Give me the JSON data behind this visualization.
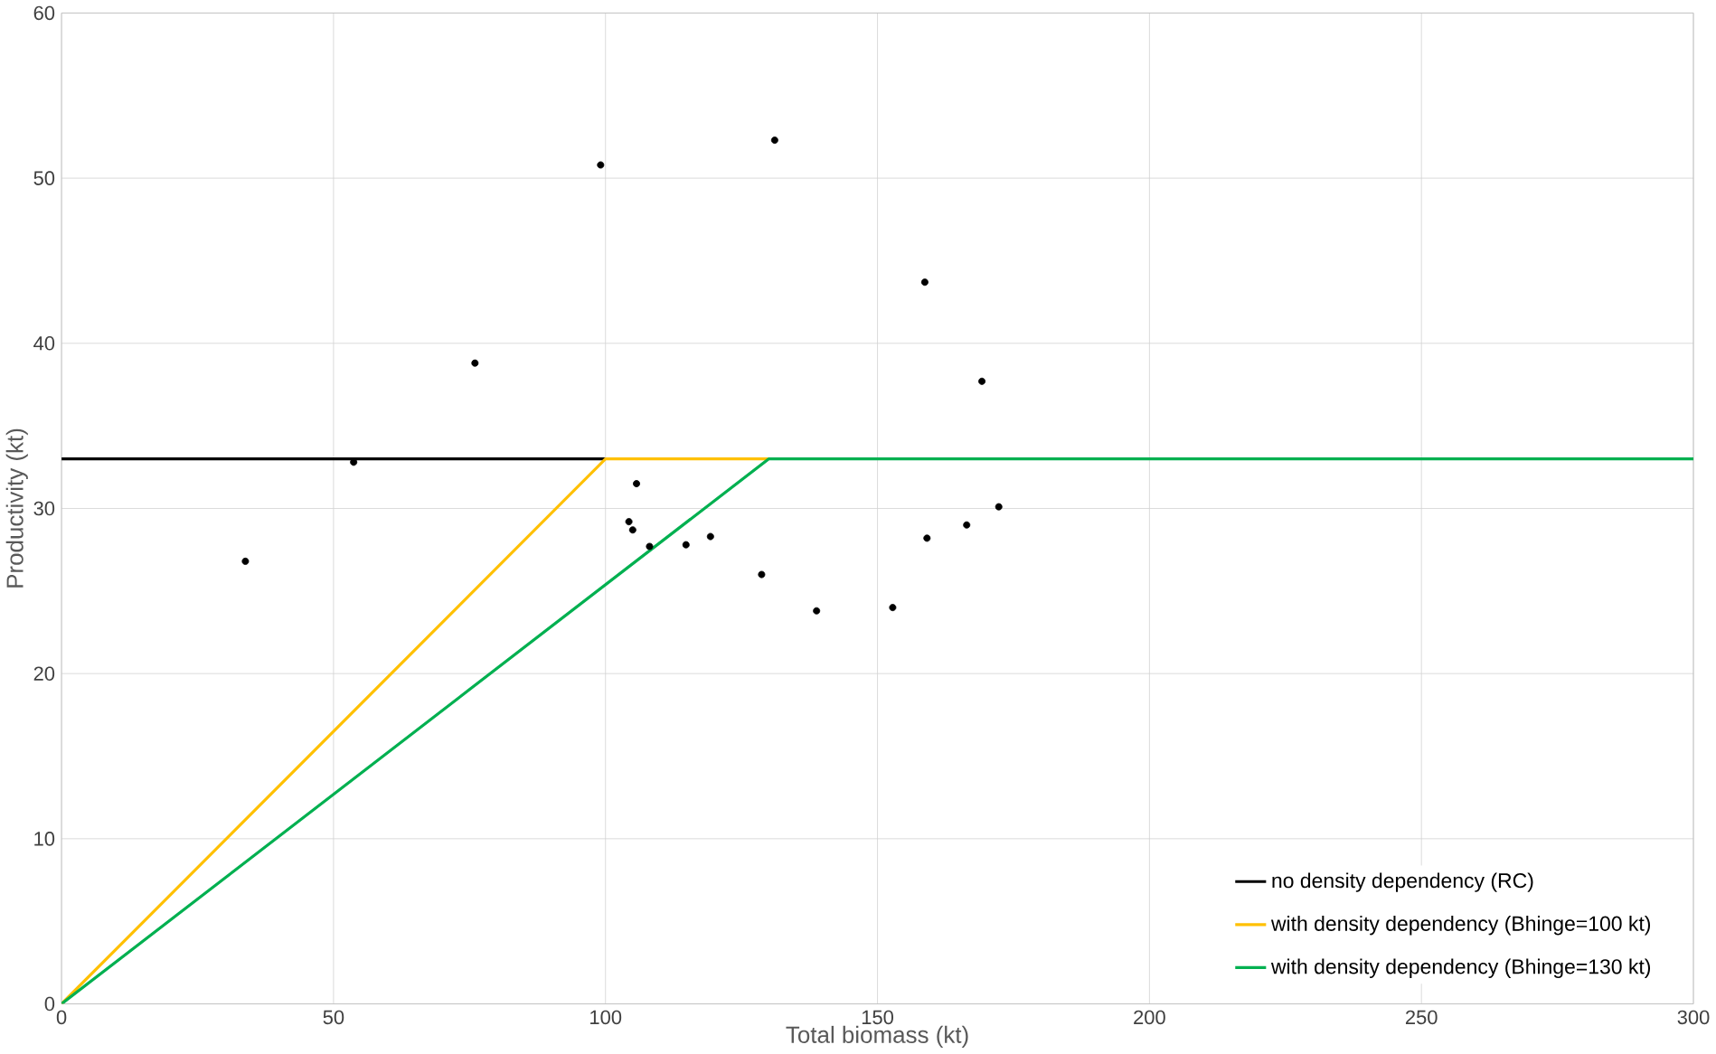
{
  "chart_data": {
    "type": "line",
    "xlabel": "Total biomass (kt)",
    "ylabel": "Productivity (kt)",
    "xlim": [
      0,
      300
    ],
    "ylim": [
      0,
      60
    ],
    "xticks": [
      0,
      50,
      100,
      150,
      200,
      250,
      300
    ],
    "yticks": [
      0,
      10,
      20,
      30,
      40,
      50,
      60
    ],
    "grid": true,
    "legend": "bottom right",
    "series": [
      {
        "type": "scatter",
        "color": "#000000",
        "marker": "circle",
        "x": [
          33.8,
          53.7,
          76.0,
          99.1,
          131.1,
          105.7,
          104.3,
          105.0,
          108.1,
          114.8,
          119.3,
          128.7,
          138.8,
          152.8,
          158.7,
          159.1,
          166.4,
          169.2,
          172.3
        ],
        "values": [
          26.8,
          32.8,
          38.8,
          50.8,
          52.3,
          31.5,
          29.2,
          28.7,
          27.7,
          27.8,
          28.3,
          26.0,
          23.8,
          24.0,
          43.7,
          28.2,
          29.0,
          37.7,
          30.1
        ]
      },
      {
        "name": "no density dependency (RC)",
        "color": "#000000",
        "x": [
          0,
          100
        ],
        "values": [
          33,
          33
        ]
      },
      {
        "name": "with density dependency (Bhinge=100 kt)",
        "color": "#ffc000",
        "x": [
          0,
          100,
          130
        ],
        "values": [
          0,
          33,
          33
        ]
      },
      {
        "name": "with density dependency (Bhinge=130 kt)",
        "color": "#00b050",
        "x": [
          0,
          130,
          300
        ],
        "values": [
          0,
          33,
          33
        ]
      }
    ]
  }
}
